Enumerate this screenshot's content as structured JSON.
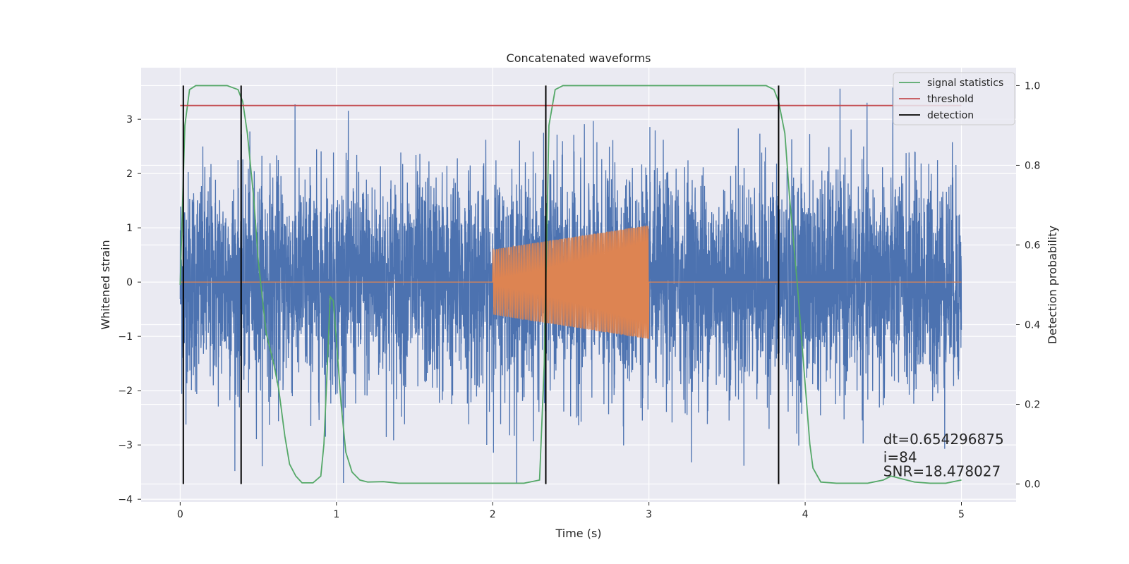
{
  "chart_data": {
    "type": "line",
    "title": "Concatenated waveforms",
    "xlabel": "Time (s)",
    "ylabel": "Whitened strain",
    "y2label": "Detection probability",
    "xlim": [
      -0.25,
      5.35
    ],
    "ylim": [
      -4.05,
      3.95
    ],
    "y2lim": [
      -0.045,
      1.045
    ],
    "xticks": [
      0,
      1,
      2,
      3,
      4,
      5
    ],
    "yticks": [
      -4,
      -3,
      -2,
      -1,
      0,
      1,
      2,
      3
    ],
    "y2ticks": [
      0.0,
      0.2,
      0.4,
      0.6,
      0.8,
      1.0
    ],
    "grid": true,
    "background": "#EAEAF2",
    "legend_position": "top-right",
    "legend": [
      {
        "label": "signal statistics",
        "color": "#55A868"
      },
      {
        "label": "threshold",
        "color": "#C44E52"
      },
      {
        "label": "detection",
        "color": "#000000"
      }
    ],
    "series": [
      {
        "name": "whitened strain",
        "color": "#4C72B0",
        "kind": "noise",
        "x_range": [
          0,
          5
        ],
        "typical_amplitude": 1.0,
        "peak_min": -3.7,
        "peak_max": 3.6
      },
      {
        "name": "injected signal",
        "color": "#DD8452",
        "kind": "chirp",
        "x_range": [
          2,
          3
        ],
        "amplitude_start": 0.6,
        "amplitude_end": 1.05,
        "zero_elsewhere": true
      },
      {
        "name": "signal statistics",
        "axis": "right",
        "color": "#55A868",
        "x": [
          0,
          0.03,
          0.06,
          0.1,
          0.2,
          0.3,
          0.37,
          0.4,
          0.43,
          0.47,
          0.5,
          0.55,
          0.6,
          0.63,
          0.67,
          0.7,
          0.74,
          0.78,
          0.85,
          0.9,
          0.92,
          0.94,
          0.96,
          0.98,
          1.0,
          1.03,
          1.06,
          1.1,
          1.15,
          1.2,
          1.3,
          1.4,
          1.6,
          1.8,
          2.0,
          2.2,
          2.3,
          2.33,
          2.36,
          2.4,
          2.45,
          2.6,
          3.0,
          3.5,
          3.75,
          3.8,
          3.83,
          3.87,
          3.9,
          3.95,
          4.0,
          4.03,
          4.05,
          4.1,
          4.2,
          4.4,
          4.5,
          4.55,
          4.6,
          4.7,
          4.8,
          4.9,
          5.0
        ],
        "y": [
          0.5,
          0.9,
          0.99,
          1.0,
          1.0,
          1.0,
          0.99,
          0.96,
          0.88,
          0.72,
          0.56,
          0.38,
          0.3,
          0.24,
          0.12,
          0.05,
          0.02,
          0.003,
          0.003,
          0.02,
          0.1,
          0.28,
          0.47,
          0.46,
          0.36,
          0.2,
          0.08,
          0.03,
          0.01,
          0.005,
          0.006,
          0.002,
          0.002,
          0.002,
          0.002,
          0.002,
          0.01,
          0.3,
          0.9,
          0.99,
          1.0,
          1.0,
          1.0,
          1.0,
          1.0,
          0.99,
          0.96,
          0.88,
          0.72,
          0.5,
          0.25,
          0.1,
          0.04,
          0.005,
          0.002,
          0.002,
          0.01,
          0.02,
          0.015,
          0.005,
          0.002,
          0.002,
          0.01
        ]
      },
      {
        "name": "threshold",
        "axis": "right",
        "color": "#C44E52",
        "x": [
          0,
          5
        ],
        "y": [
          0.95,
          0.95
        ]
      }
    ],
    "detections": {
      "color": "#000000",
      "x": [
        0.02,
        0.39,
        2.34,
        3.83
      ],
      "y_range": [
        0.0,
        1.0
      ]
    },
    "annotations": [
      {
        "text": "dt=0.654296875",
        "x": 4.5,
        "y2": 0.1
      },
      {
        "text": " i=84",
        "x": 4.5,
        "y2": 0.055
      },
      {
        "text": "SNR=18.478027",
        "x": 4.5,
        "y2": 0.02
      }
    ]
  }
}
